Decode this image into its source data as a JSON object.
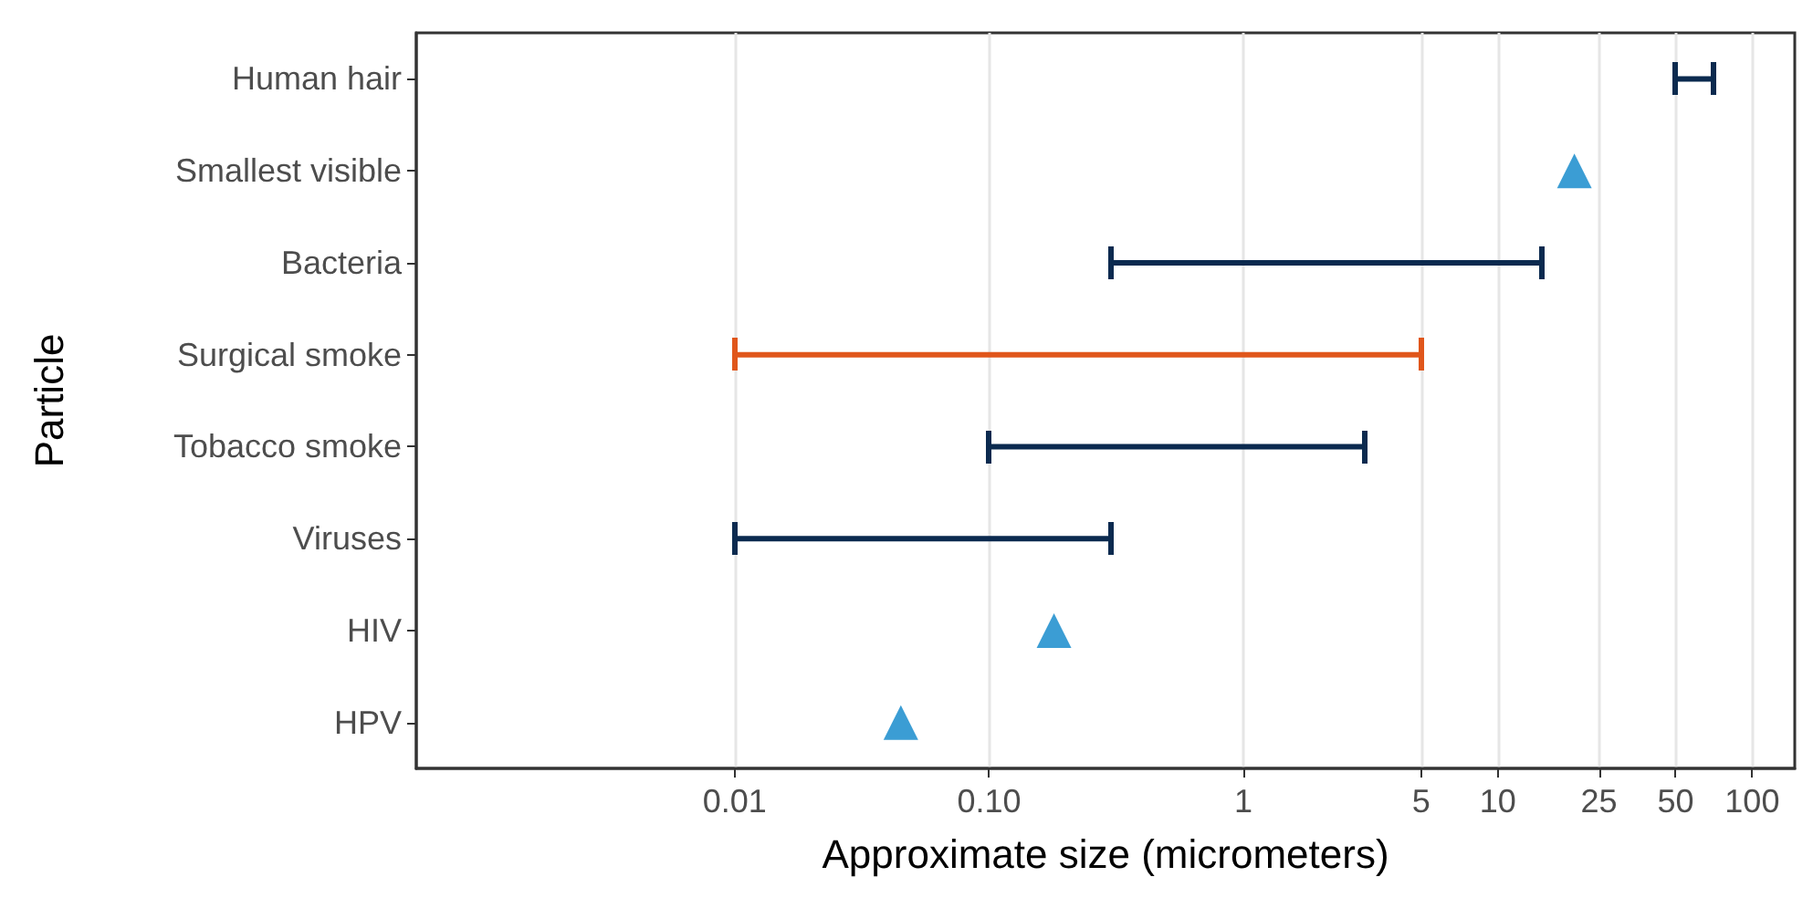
{
  "chart_data": {
    "type": "bar",
    "orientation": "horizontal",
    "xlabel": "Approximate size (micrometers)",
    "ylabel": "Particle",
    "categories": [
      "Human hair",
      "Smallest visible",
      "Bacteria",
      "Surgical smoke",
      "Tobacco smoke",
      "Viruses",
      "HIV",
      "HPV"
    ],
    "series": [
      {
        "base": [
          50,
          null,
          0.3,
          0.01,
          0.1,
          0.01,
          null,
          null
        ],
        "values": [
          20,
          null,
          14.7,
          4.99,
          2.9,
          0.29,
          null,
          null
        ],
        "colors": [
          "#0b2a4f",
          null,
          "#0b2a4f",
          "#e0561b",
          "#0b2a4f",
          "#0b2a4f",
          null,
          null
        ]
      },
      {
        "type": "scatter",
        "marker": "triangle",
        "color": "#0a84c9",
        "values": [
          null,
          20,
          null,
          null,
          null,
          null,
          0.18,
          0.045
        ]
      }
    ],
    "log": "x",
    "xlim": [
      0.00056,
      147
    ],
    "xticks": [
      0.01,
      {
        "value": 0.1,
        "label": "0.10"
      },
      1,
      5,
      10,
      25,
      50,
      100
    ],
    "grid": "x"
  }
}
